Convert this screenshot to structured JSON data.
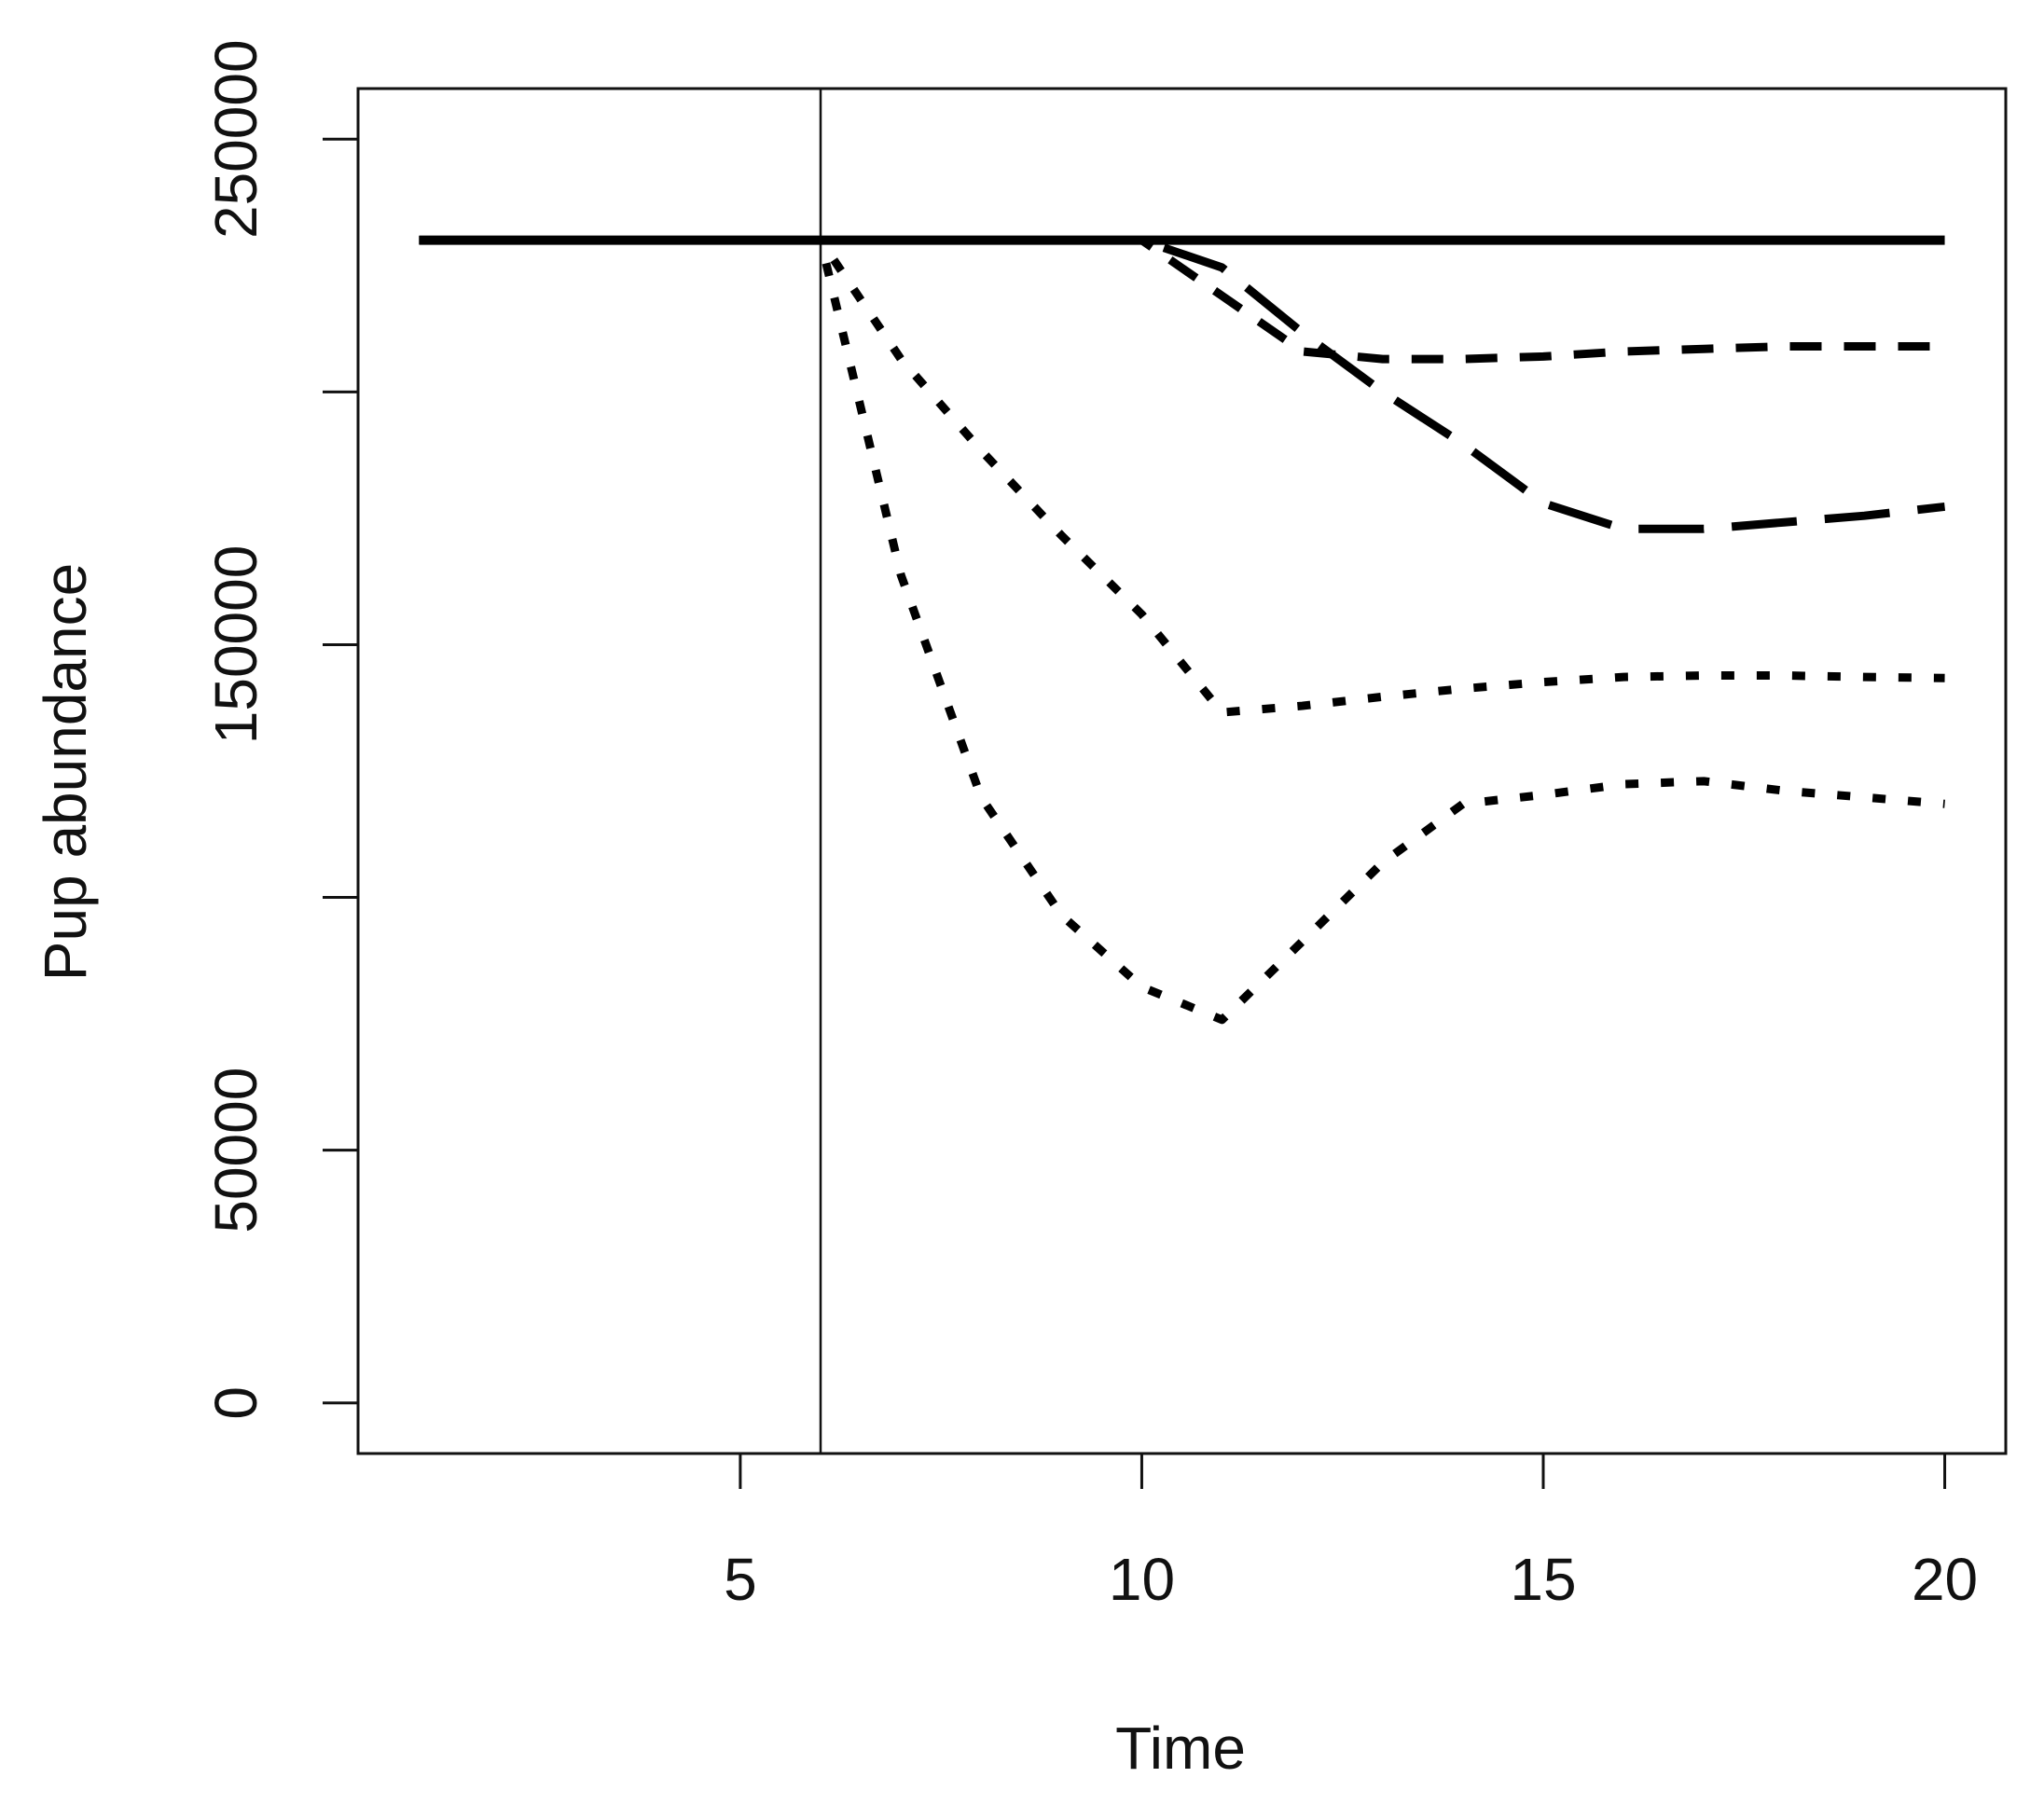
{
  "chart_data": {
    "type": "line",
    "x_label": "Time",
    "y_label": "Pup abundance",
    "x": [
      1,
      2,
      3,
      4,
      5,
      6,
      7,
      8,
      9,
      10,
      11,
      12,
      13,
      14,
      15,
      16,
      17,
      18,
      19,
      20
    ],
    "series": [
      {
        "color": "#000000",
        "dash": "solid",
        "values": [
          230000,
          230000,
          230000,
          230000,
          230000,
          230000,
          230000,
          230000,
          230000,
          230000,
          230000,
          230000,
          230000,
          230000,
          230000,
          230000,
          230000,
          230000,
          230000,
          230000
        ]
      },
      {
        "color": "#000000",
        "dash": "dashed",
        "values": [
          230000,
          230000,
          230000,
          230000,
          230000,
          230000,
          230000,
          230000,
          230000,
          230000,
          219000,
          208000,
          206500,
          206500,
          207000,
          208000,
          208500,
          209000,
          209000,
          209000
        ]
      },
      {
        "color": "#000000",
        "dash": "longdash",
        "values": [
          230000,
          230000,
          230000,
          230000,
          230000,
          230000,
          230000,
          230000,
          230000,
          230000,
          224600,
          211700,
          200000,
          189700,
          178000,
          172900,
          172900,
          174200,
          175500,
          177300
        ]
      },
      {
        "color": "#000000",
        "dash": "dotted",
        "values": [
          230000,
          230000,
          230000,
          230000,
          230000,
          230000,
          206500,
          188400,
          171600,
          156000,
          136600,
          137900,
          139700,
          141300,
          142600,
          143600,
          143900,
          143900,
          143600,
          143400
        ]
      },
      {
        "color": "#000000",
        "dash": "dotted",
        "values": [
          230000,
          230000,
          230000,
          230000,
          230000,
          230000,
          163800,
          119800,
          96500,
          82300,
          75800,
          91300,
          106900,
          118500,
          120300,
          122400,
          123000,
          121100,
          119800,
          118500
        ]
      }
    ],
    "vline": 6,
    "xlim": [
      0.24,
      20.76
    ],
    "xticks": [
      5,
      10,
      15,
      20
    ],
    "ylim": [
      -10000,
      260000
    ],
    "yticks": [
      0,
      50000,
      {
        "value": 100000,
        "label": null
      },
      150000,
      {
        "value": 200000,
        "label": null
      },
      250000
    ]
  }
}
